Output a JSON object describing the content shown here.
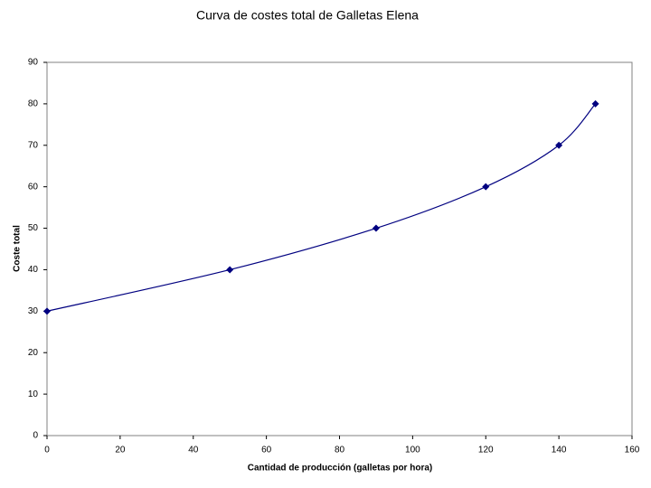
{
  "chart_data": {
    "type": "line",
    "title": "Curva de costes total de Galletas Elena",
    "x_label": "Cantidad de producción (galletas por hora)",
    "y_label": "Coste total",
    "x": [
      0,
      50,
      90,
      120,
      140,
      150
    ],
    "values": [
      30,
      40,
      50,
      60,
      70,
      80
    ],
    "color": "#000080",
    "smooth": true,
    "xlim": [
      0,
      160
    ],
    "xticks": [
      0,
      20,
      40,
      60,
      80,
      100,
      120,
      140,
      160
    ],
    "ylim": [
      0,
      90
    ],
    "yticks": [
      0,
      10,
      20,
      30,
      40,
      50,
      60,
      70,
      80,
      90
    ],
    "grid": false
  }
}
